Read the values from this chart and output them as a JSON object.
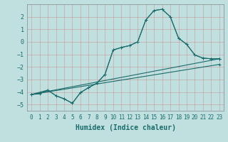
{
  "xlabel": "Humidex (Indice chaleur)",
  "background_color": "#c0e0e0",
  "grid_color": "#b0cccc",
  "line_color": "#1a6b6b",
  "xlim": [
    -0.5,
    23.5
  ],
  "ylim": [
    -5.5,
    3.0
  ],
  "yticks": [
    -5,
    -4,
    -3,
    -2,
    -1,
    0,
    1,
    2
  ],
  "xticks": [
    0,
    1,
    2,
    3,
    4,
    5,
    6,
    7,
    8,
    9,
    10,
    11,
    12,
    13,
    14,
    15,
    16,
    17,
    18,
    19,
    20,
    21,
    22,
    23
  ],
  "curve1_x": [
    0,
    1,
    2,
    3,
    4,
    5,
    6,
    7,
    8,
    9,
    10,
    11,
    12,
    13,
    14,
    15,
    16,
    17,
    18,
    19,
    20,
    21,
    22,
    23
  ],
  "curve1_y": [
    -4.2,
    -4.15,
    -3.85,
    -4.3,
    -4.55,
    -4.9,
    -4.05,
    -3.65,
    -3.3,
    -2.6,
    -0.65,
    -0.45,
    -0.3,
    0.0,
    1.75,
    2.5,
    2.6,
    2.0,
    0.3,
    -0.2,
    -1.05,
    -1.3,
    -1.35,
    -1.35
  ],
  "curve2_x": [
    0,
    2,
    3,
    4,
    5,
    6,
    7,
    8,
    9,
    10,
    11,
    12,
    13,
    14,
    15,
    16,
    17,
    18,
    19,
    20,
    21,
    22,
    23
  ],
  "curve2_y": [
    -4.2,
    -3.85,
    -4.3,
    -4.55,
    -4.9,
    -4.05,
    -3.65,
    -3.3,
    -2.6,
    -0.65,
    -0.45,
    -0.3,
    0.0,
    1.75,
    2.5,
    2.6,
    2.0,
    0.3,
    -0.2,
    -1.05,
    -1.3,
    -1.35,
    -1.35
  ],
  "line1_x": [
    0,
    23
  ],
  "line1_y": [
    -4.2,
    -1.35
  ],
  "line2_x": [
    0,
    23
  ],
  "line2_y": [
    -4.2,
    -1.8
  ],
  "xlabel_fontsize": 7,
  "tick_fontsize": 5.5
}
